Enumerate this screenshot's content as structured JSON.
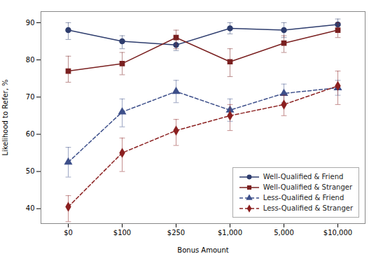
{
  "chart_data": {
    "type": "line",
    "xlabel": "Bonus Amount",
    "ylabel": "Likelihood to Refer, %",
    "categories": [
      "$0",
      "$100",
      "$250",
      "$1,000",
      "5,000",
      "$10,000"
    ],
    "series": [
      {
        "name": "Well-Qualified & Friend",
        "color": "#2e3d6e",
        "marker": "circle",
        "line_style": "solid",
        "values": [
          88,
          85,
          84,
          88.5,
          88,
          89.5
        ],
        "yerr_low": [
          2.5,
          2,
          1.5,
          1.5,
          2,
          1.5
        ],
        "yerr_high": [
          2,
          1.5,
          1.5,
          1.5,
          2,
          1.5
        ]
      },
      {
        "name": "Well-Qualified & Stranger",
        "color": "#7a2020",
        "marker": "square",
        "line_style": "solid",
        "values": [
          77,
          79,
          86,
          79.5,
          84.5,
          88
        ],
        "yerr_low": [
          3,
          3,
          3,
          4,
          2.5,
          2
        ],
        "yerr_high": [
          4,
          3,
          2,
          3.5,
          2,
          2
        ]
      },
      {
        "name": "Less-Qualified & Friend",
        "color": "#3d4f8a",
        "marker": "triangle",
        "line_style": "dashed",
        "values": [
          52.5,
          66,
          71.5,
          66.5,
          71,
          72.5
        ],
        "yerr_low": [
          4,
          4,
          3,
          3,
          2.5,
          2
        ],
        "yerr_high": [
          4,
          3.5,
          3,
          3,
          2.5,
          2
        ]
      },
      {
        "name": "Less-Qualified & Stranger",
        "color": "#8b2020",
        "marker": "diamond",
        "line_style": "dashed",
        "values": [
          40.5,
          55,
          61,
          65,
          68,
          73
        ],
        "yerr_low": [
          4,
          5,
          4,
          4,
          3,
          5
        ],
        "yerr_high": [
          3,
          4,
          3,
          3,
          2.5,
          4
        ]
      }
    ],
    "ylim": [
      36,
      93
    ],
    "yticks": [
      40,
      50,
      60,
      70,
      80,
      90
    ],
    "legend": "lower right"
  }
}
